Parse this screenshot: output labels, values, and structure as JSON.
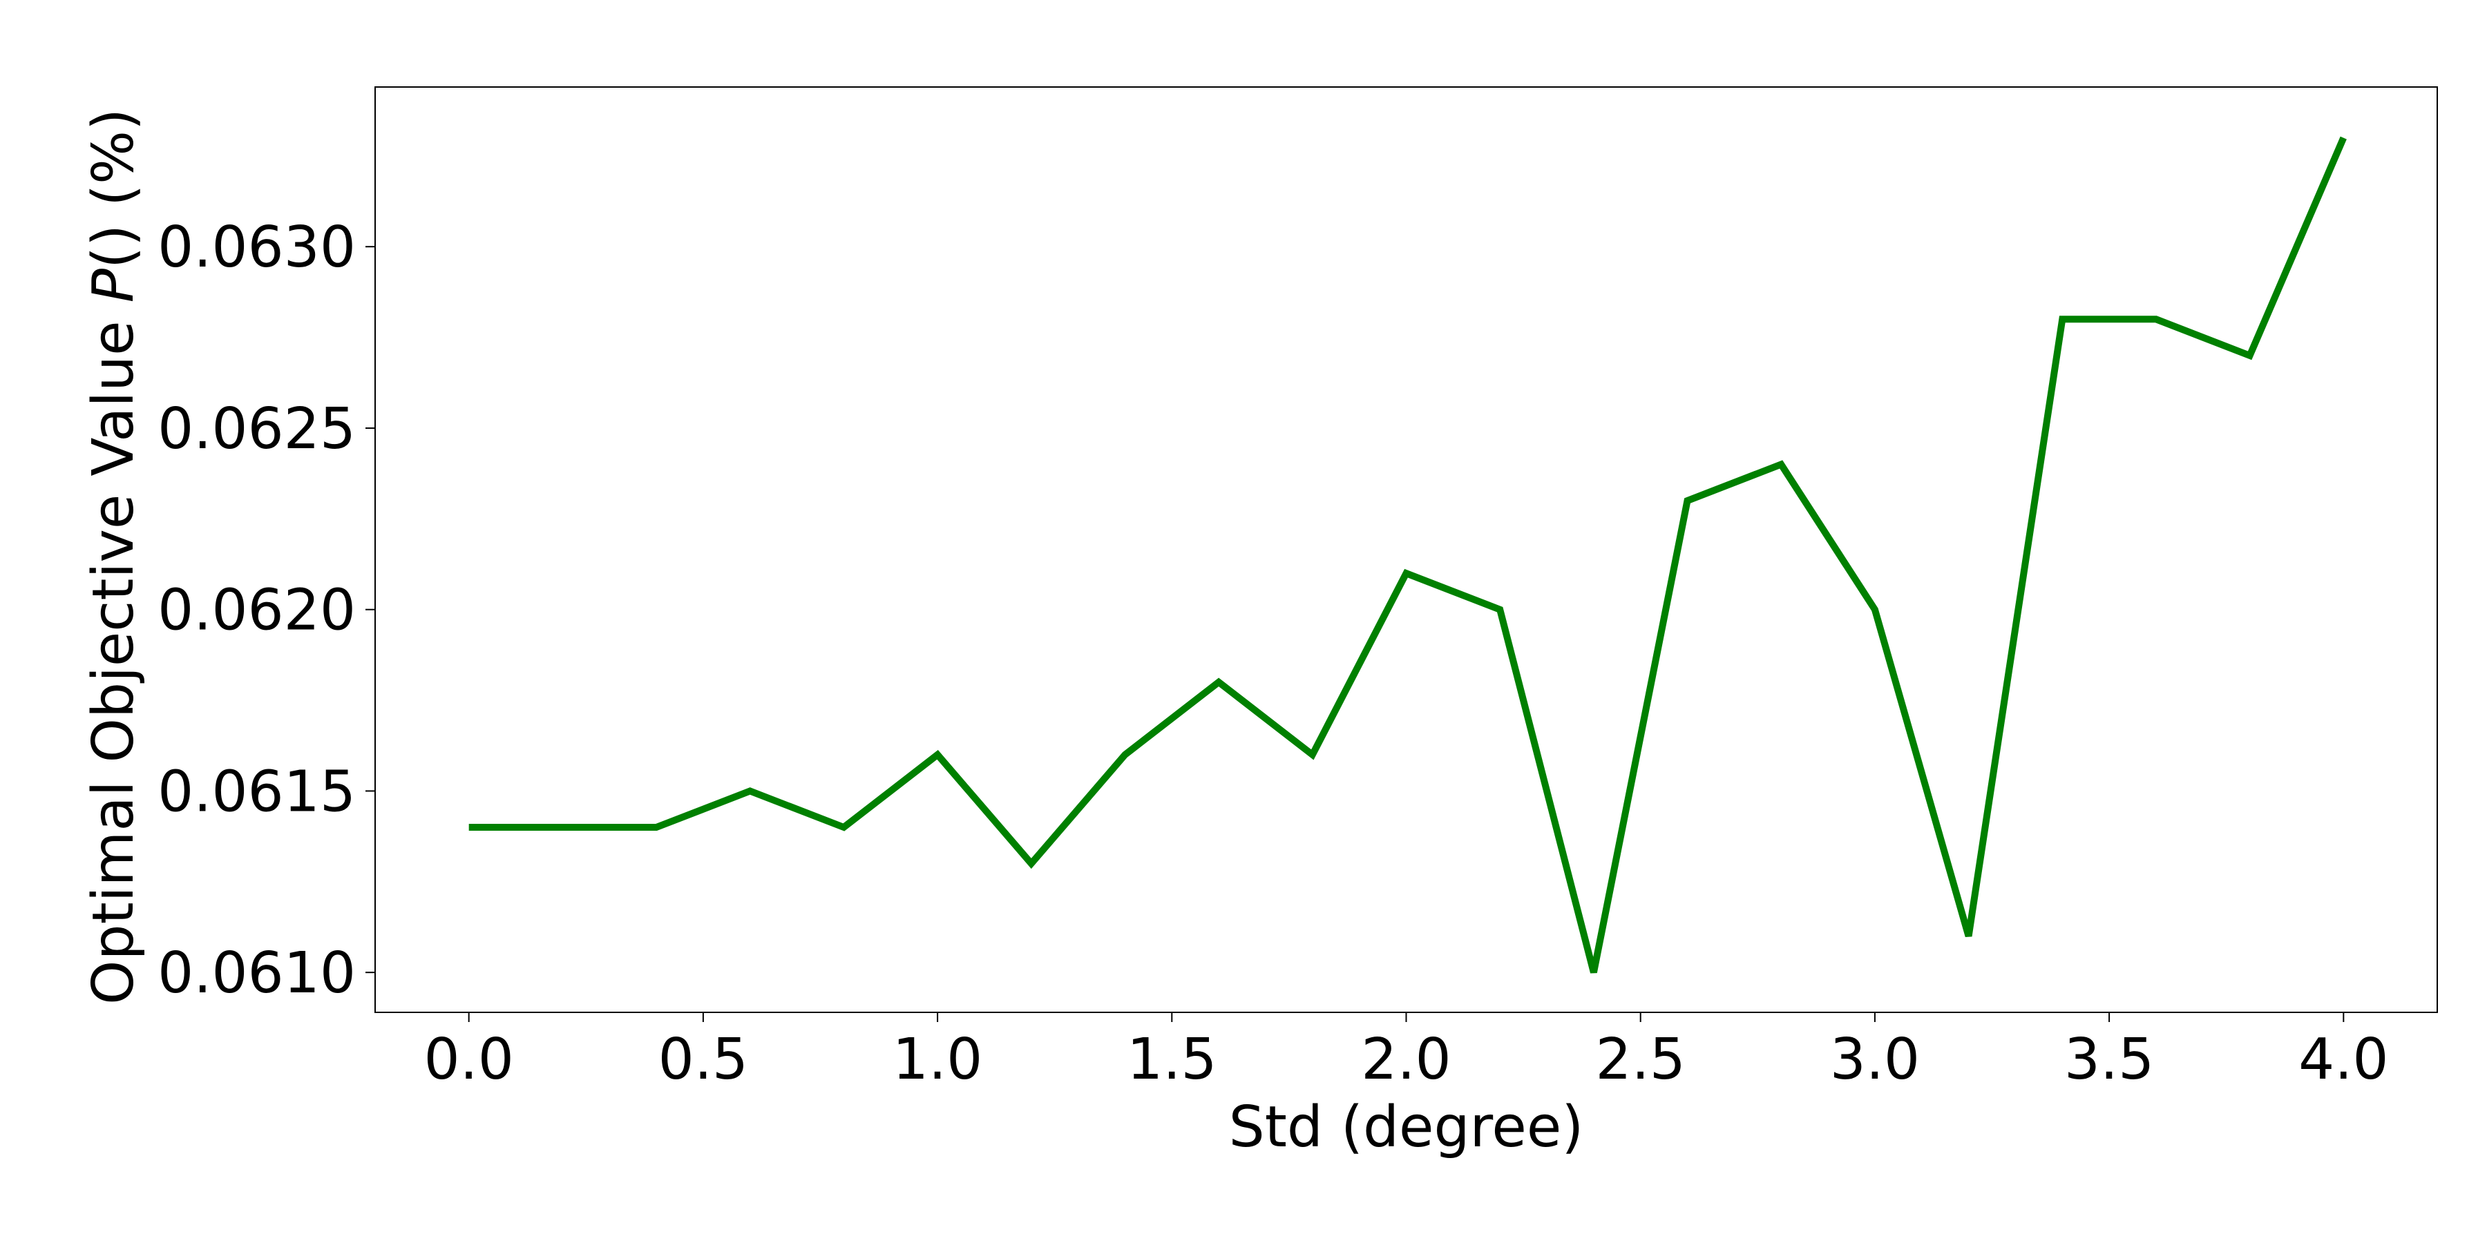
{
  "chart_data": {
    "type": "line",
    "title": "",
    "xlabel": "Std (degree)",
    "ylabel": {
      "prefix": "Optimal Objective Value ",
      "italic": "P",
      "suffix": "() (%)"
    },
    "xlim": [
      -0.2,
      4.2
    ],
    "ylim": [
      0.06089,
      0.06344
    ],
    "x_ticks": [
      0.0,
      0.5,
      1.0,
      1.5,
      2.0,
      2.5,
      3.0,
      3.5,
      4.0
    ],
    "x_tick_labels": [
      "0.0",
      "0.5",
      "1.0",
      "1.5",
      "2.0",
      "2.5",
      "3.0",
      "3.5",
      "4.0"
    ],
    "y_ticks": [
      0.061,
      0.0615,
      0.062,
      0.0625,
      0.063
    ],
    "y_tick_labels": [
      "0.0610",
      "0.0615",
      "0.0620",
      "0.0625",
      "0.0630"
    ],
    "grid": false,
    "series": [
      {
        "color": "#008000",
        "x": [
          0.0,
          0.2,
          0.4,
          0.6,
          0.8,
          1.0,
          1.2,
          1.4,
          1.6,
          1.8,
          2.0,
          2.2,
          2.4,
          2.6,
          2.8,
          3.0,
          3.2,
          3.4,
          3.6,
          3.8,
          4.0
        ],
        "y": [
          0.0614,
          0.0614,
          0.0614,
          0.0615,
          0.0614,
          0.0616,
          0.0613,
          0.0616,
          0.0618,
          0.0616,
          0.0621,
          0.062,
          0.061,
          0.0623,
          0.0624,
          0.062,
          0.0611,
          0.0628,
          0.0628,
          0.0627,
          0.0633
        ]
      }
    ]
  }
}
